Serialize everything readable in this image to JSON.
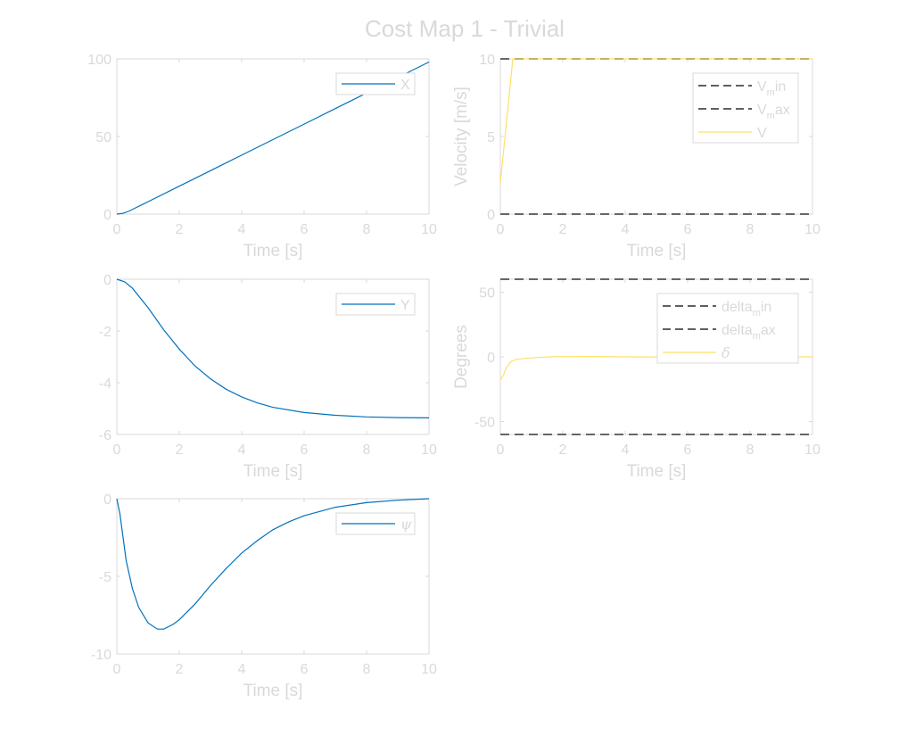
{
  "figure": {
    "title": "Cost Map 1 - Trivial"
  },
  "colors": {
    "blue": "#0072bd",
    "yellow": "#ffe066",
    "dash": "#000000",
    "dash_gray": "#666666",
    "text": "#d9d9d9",
    "axes": "#d9d9d9"
  },
  "chart_data": [
    {
      "id": "x",
      "type": "line",
      "xlabel": "Time [s]",
      "ylabel": "",
      "xlim": [
        0,
        10
      ],
      "ylim": [
        0,
        100
      ],
      "xticks": [
        "0",
        "2",
        "4",
        "6",
        "8",
        "10"
      ],
      "yticks": [
        "0",
        "50",
        "100"
      ],
      "legend": {
        "location": "top-right",
        "entries": [
          {
            "text": "X",
            "style": "solid",
            "color": "#0072bd"
          }
        ]
      },
      "series": [
        {
          "name": "X",
          "color": "#0072bd",
          "style": "solid",
          "x": [
            0,
            0.2,
            0.4,
            0.6,
            0.8,
            1,
            2,
            3,
            4,
            5,
            6,
            7,
            8,
            9,
            10
          ],
          "y": [
            0,
            0.5,
            2,
            4,
            6,
            8,
            18,
            28,
            38,
            48,
            58,
            68,
            78,
            88,
            98
          ]
        }
      ]
    },
    {
      "id": "velocity",
      "type": "line",
      "xlabel": "Time [s]",
      "ylabel": "Velocity [m/s]",
      "xlim": [
        0,
        10
      ],
      "ylim": [
        0,
        10
      ],
      "xticks": [
        "0",
        "2",
        "4",
        "6",
        "8",
        "10"
      ],
      "yticks": [
        "0",
        "5",
        "10"
      ],
      "legend": {
        "location": "top-right",
        "entries": [
          {
            "text": "V",
            "sub": "m",
            "suffix": "in",
            "style": "dashed",
            "color": "#000000"
          },
          {
            "text": "V",
            "sub": "m",
            "suffix": "ax",
            "style": "dashed",
            "color": "#000000"
          },
          {
            "text": "V",
            "style": "solid",
            "color": "#ffe066"
          }
        ]
      },
      "series": [
        {
          "name": "V_min",
          "color": "#666666",
          "style": "dashed",
          "x": [
            0,
            10
          ],
          "y": [
            0,
            0
          ]
        },
        {
          "name": "V_max",
          "color": "#666666",
          "style": "dashed",
          "x": [
            0,
            10
          ],
          "y": [
            10,
            10
          ]
        },
        {
          "name": "V",
          "color": "#ffe066",
          "style": "solid",
          "x": [
            0,
            0.4,
            10
          ],
          "y": [
            2,
            10,
            10
          ]
        }
      ]
    },
    {
      "id": "y",
      "type": "line",
      "xlabel": "Time [s]",
      "ylabel": "",
      "xlim": [
        0,
        10
      ],
      "ylim": [
        -6,
        0
      ],
      "xticks": [
        "0",
        "2",
        "4",
        "6",
        "8",
        "10"
      ],
      "yticks": [
        "-6",
        "-4",
        "-2",
        "0"
      ],
      "legend": {
        "location": "top-right",
        "entries": [
          {
            "text": "Y",
            "style": "solid",
            "color": "#0072bd"
          }
        ]
      },
      "series": [
        {
          "name": "Y",
          "color": "#0072bd",
          "style": "solid",
          "x": [
            0,
            0.25,
            0.5,
            1,
            1.5,
            2,
            2.5,
            3,
            3.5,
            4,
            4.5,
            5,
            6,
            7,
            8,
            9,
            10
          ],
          "y": [
            0,
            -0.1,
            -0.35,
            -1.1,
            -1.95,
            -2.7,
            -3.35,
            -3.85,
            -4.25,
            -4.55,
            -4.78,
            -4.95,
            -5.15,
            -5.26,
            -5.32,
            -5.35,
            -5.36
          ]
        }
      ]
    },
    {
      "id": "steering",
      "type": "line",
      "xlabel": "Time [s]",
      "ylabel": "Degrees",
      "xlim": [
        0,
        10
      ],
      "ylim": [
        -60,
        60
      ],
      "xticks": [
        "0",
        "2",
        "4",
        "6",
        "8",
        "10"
      ],
      "yticks": [
        "-50",
        "0",
        "50"
      ],
      "legend": {
        "location": "top-right",
        "entries": [
          {
            "text": "delta",
            "sub": "m",
            "suffix": "in",
            "style": "dashed",
            "color": "#000000"
          },
          {
            "text": "delta",
            "sub": "m",
            "suffix": "ax",
            "style": "dashed",
            "color": "#000000"
          },
          {
            "text": "δ",
            "greek": true,
            "style": "solid",
            "color": "#ffe066"
          }
        ]
      },
      "series": [
        {
          "name": "delta_min",
          "color": "#666666",
          "style": "dashed",
          "x": [
            0,
            10
          ],
          "y": [
            -60,
            -60
          ]
        },
        {
          "name": "delta_max",
          "color": "#666666",
          "style": "dashed",
          "x": [
            0,
            10
          ],
          "y": [
            60,
            60
          ]
        },
        {
          "name": "δ",
          "color": "#ffe066",
          "style": "solid",
          "x": [
            0,
            0.1,
            0.2,
            0.35,
            0.5,
            0.8,
            1.2,
            1.6,
            2,
            3,
            4,
            6,
            8,
            10
          ],
          "y": [
            -18,
            -14,
            -8,
            -3.5,
            -2,
            -1.2,
            -0.5,
            0,
            0.2,
            0.3,
            0,
            -0.2,
            0,
            0
          ]
        }
      ]
    },
    {
      "id": "psi",
      "type": "line",
      "xlabel": "Time [s]",
      "ylabel": "",
      "xlim": [
        0,
        10
      ],
      "ylim": [
        -10,
        0
      ],
      "xticks": [
        "0",
        "2",
        "4",
        "6",
        "8",
        "10"
      ],
      "yticks": [
        "-10",
        "-5",
        "0"
      ],
      "legend": {
        "location": "top-right",
        "entries": [
          {
            "text": "ψ",
            "greek": true,
            "style": "solid",
            "color": "#0072bd"
          }
        ]
      },
      "series": [
        {
          "name": "ψ",
          "color": "#0072bd",
          "style": "solid",
          "x": [
            0,
            0.1,
            0.2,
            0.3,
            0.5,
            0.7,
            1,
            1.3,
            1.5,
            1.8,
            2,
            2.5,
            3,
            3.5,
            4,
            4.5,
            5,
            5.5,
            6,
            7,
            8,
            9,
            10
          ],
          "y": [
            0,
            -1.0,
            -2.5,
            -4.0,
            -5.8,
            -7.0,
            -8.0,
            -8.4,
            -8.4,
            -8.1,
            -7.8,
            -6.8,
            -5.6,
            -4.5,
            -3.5,
            -2.7,
            -2.0,
            -1.5,
            -1.1,
            -0.55,
            -0.25,
            -0.1,
            0
          ]
        }
      ]
    }
  ]
}
